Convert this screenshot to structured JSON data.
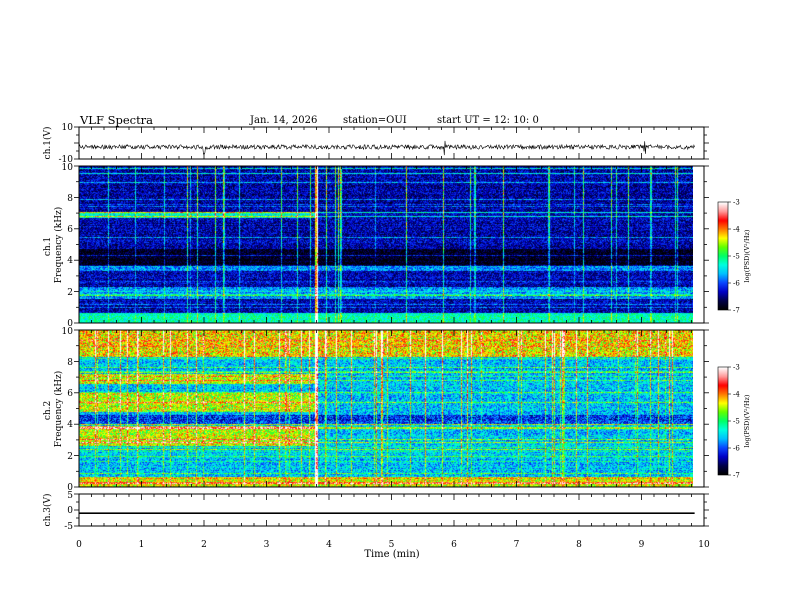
{
  "header": {
    "title": "VLF Spectra",
    "date": "Jan. 14, 2026",
    "station": "station=OUI",
    "start_ut": "start UT =  12: 10: 0"
  },
  "colors": {
    "colormap": [
      "#000000",
      "#00004a",
      "#0000c8",
      "#0a46ff",
      "#00bfff",
      "#00ffe0",
      "#00ff66",
      "#60ff00",
      "#ffff00",
      "#ff7a00",
      "#ff0000",
      "#ff9a9a",
      "#ffffff"
    ],
    "waveform": "#000000"
  },
  "chart_data": [
    {
      "type": "line",
      "name": "ch1-waveform",
      "ylabel": "ch.1(V)",
      "ylim": [
        -10,
        10
      ],
      "yticks": [
        "10",
        "-10"
      ],
      "x_range_min": [
        0,
        9.85
      ],
      "baseline_v": -2.5,
      "noise_amplitude_v": 1.4,
      "spikes_min": [
        2.0,
        5.85,
        9.05
      ]
    },
    {
      "type": "heatmap",
      "name": "ch1-spectrogram",
      "ylabel": "ch.1\nFrequency (kHz)",
      "ylim": [
        0,
        10
      ],
      "yticks": [
        "0",
        "2",
        "4",
        "6",
        "8",
        "10"
      ],
      "x_range_min": [
        0,
        9.85
      ],
      "value_range_logpsd": [
        -7,
        -3
      ],
      "background_level": -6.4,
      "broadband_transient_min": 3.8,
      "enhanced_bands_before_transient_khz": [
        [
          6.7,
          7.1
        ]
      ],
      "enhanced_bands_all_khz": [
        [
          1.5,
          2.3
        ],
        [
          3.3,
          3.6
        ]
      ],
      "quiet_bands_khz": [
        [
          3.7,
          4.7
        ]
      ],
      "colorbar": {
        "label": "log(PSD)(V²/Hz)",
        "ticks": [
          "-3",
          "-4",
          "-5",
          "-6",
          "-7"
        ]
      }
    },
    {
      "type": "heatmap",
      "name": "ch2-spectrogram",
      "ylabel": "ch.2\nFrequency (kHz)",
      "ylim": [
        0,
        10
      ],
      "yticks": [
        "0",
        "2",
        "4",
        "6",
        "8",
        "10"
      ],
      "x_range_min": [
        0,
        9.85
      ],
      "value_range_logpsd": [
        -7,
        -3
      ],
      "background_level": -5.6,
      "broadband_transient_min": 3.8,
      "enhanced_bands_before_transient_khz": [
        [
          2.6,
          3.9
        ],
        [
          4.8,
          6.0
        ],
        [
          6.6,
          7.2
        ]
      ],
      "enhanced_bands_all_khz": [
        [
          8.3,
          10.0
        ]
      ],
      "quiet_bands_khz": [
        [
          4.0,
          4.6
        ]
      ],
      "colorbar": {
        "label": "log(PSD)(V²/Hz)",
        "ticks": [
          "-3",
          "-4",
          "-5",
          "-6",
          "-7"
        ]
      }
    },
    {
      "type": "line",
      "name": "ch3-waveform",
      "ylabel": "ch.3(V)",
      "ylim": [
        -5,
        5
      ],
      "yticks": [
        "5",
        "0",
        "-5"
      ],
      "x_range_min": [
        0,
        9.85
      ],
      "level_v": -1.0,
      "line_thickness_v": 0.5
    }
  ],
  "xaxis": {
    "label": "Time (min)",
    "range": [
      0,
      10
    ],
    "ticks": [
      "0",
      "1",
      "2",
      "3",
      "4",
      "5",
      "6",
      "7",
      "8",
      "9",
      "10"
    ]
  }
}
